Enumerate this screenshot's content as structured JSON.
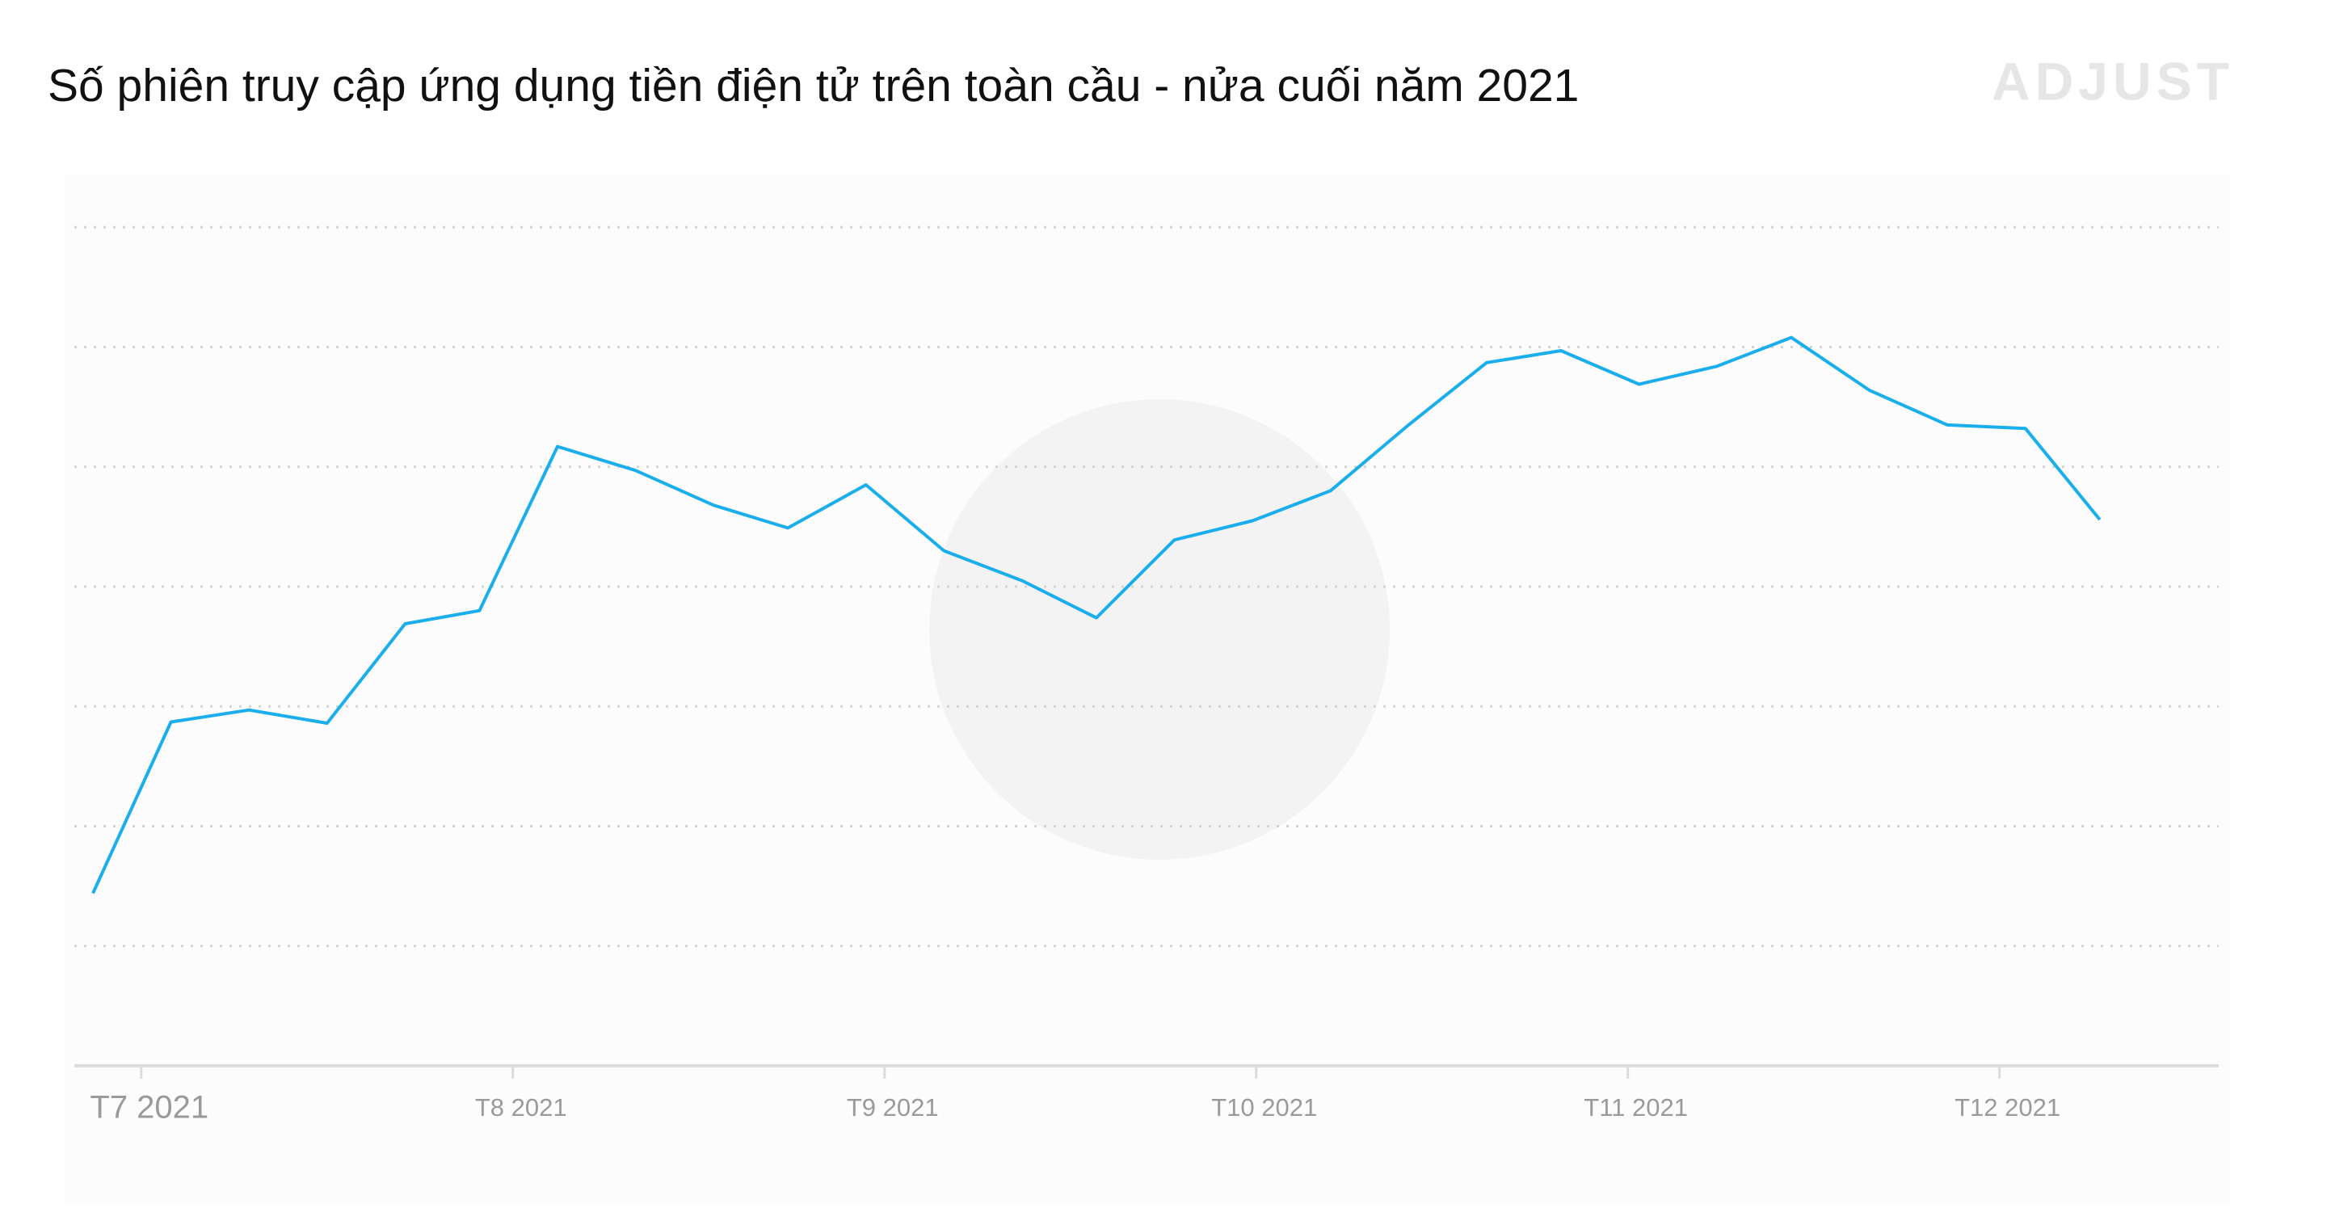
{
  "brand": "ADJUST",
  "chart_data": {
    "type": "line",
    "title": "Số phiên truy cập ứng dụng tiền điện tử trên toàn cầu - nửa cuối năm 2021",
    "color": "#1aaeec",
    "x": [
      -0.13,
      0.08,
      0.29,
      0.5,
      0.71,
      0.91,
      1.12,
      1.33,
      1.54,
      1.74,
      1.95,
      2.16,
      2.37,
      2.57,
      2.78,
      2.99,
      3.2,
      3.41,
      3.62,
      3.82,
      4.03,
      4.24,
      4.44,
      4.65,
      4.86,
      5.07,
      5.27
    ],
    "values": [
      1.44,
      2.87,
      2.97,
      2.86,
      3.69,
      3.8,
      5.17,
      4.97,
      4.68,
      4.49,
      4.85,
      4.3,
      4.05,
      3.74,
      4.39,
      4.55,
      4.8,
      5.35,
      5.87,
      5.97,
      5.69,
      5.84,
      6.08,
      5.64,
      5.35,
      5.32,
      4.56
    ],
    "xlim": [
      -0.18,
      5.59
    ],
    "xticks": [
      {
        "value": 0,
        "label": "T7 2021"
      },
      {
        "value": 1,
        "label": "T8 2021"
      },
      {
        "value": 2,
        "label": "T9 2021"
      },
      {
        "value": 3,
        "label": "T10 2021"
      },
      {
        "value": 4,
        "label": "T11 2021"
      },
      {
        "value": 5,
        "label": "T12 2021"
      }
    ],
    "ylim": [
      0,
      7.4
    ],
    "yticks": [
      1,
      2,
      3,
      4,
      5,
      6,
      7
    ],
    "grid": true
  }
}
